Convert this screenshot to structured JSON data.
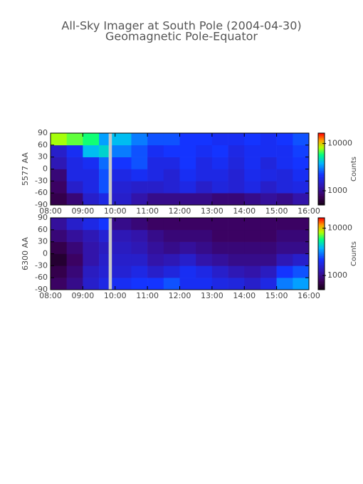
{
  "title": "All-Sky Imager at South Pole (2004-04-30)",
  "subtitle": "Geomagnetic Pole-Equator",
  "chart_data": [
    {
      "type": "heatmap",
      "ylabel": "5577 AA",
      "colormap": "rainbow",
      "x_bins": [
        8,
        8.5,
        9,
        9.5,
        9.8,
        9.9,
        10.5,
        11,
        11.5,
        12,
        12.5,
        13,
        13.5,
        14,
        14.5,
        15,
        15.5,
        16
      ],
      "y_bins": [
        -90,
        -60,
        -30,
        0,
        30,
        60,
        90
      ],
      "values": [
        [
          700,
          900,
          1500,
          1800,
          null,
          1500,
          1200,
          1000,
          1000,
          1000,
          1000,
          900,
          900,
          1000,
          1100,
          1000,
          1200
        ],
        [
          800,
          1500,
          1800,
          2500,
          null,
          1600,
          1500,
          1500,
          1600,
          1800,
          1500,
          1700,
          1600,
          1800,
          1500,
          1700,
          1800
        ],
        [
          900,
          1800,
          1800,
          2500,
          null,
          1800,
          2000,
          1800,
          1600,
          2000,
          1800,
          1800,
          1600,
          1900,
          1800,
          1700,
          2000
        ],
        [
          1300,
          1800,
          2000,
          2800,
          null,
          2200,
          2500,
          1800,
          1800,
          2200,
          1800,
          2000,
          1700,
          2000,
          1700,
          2000,
          2200
        ],
        [
          1500,
          2000,
          4000,
          4500,
          null,
          3000,
          2500,
          2000,
          2200,
          2200,
          2000,
          2200,
          1800,
          2000,
          2000,
          2000,
          2300
        ],
        [
          8000,
          7000,
          6000,
          3500,
          null,
          4000,
          3000,
          2500,
          2500,
          2200,
          2200,
          2000,
          2000,
          2200,
          2000,
          2200,
          2500
        ]
      ],
      "xlim": [
        8,
        16
      ],
      "xticks": [
        {
          "value": 8,
          "label": "08:00"
        },
        {
          "value": 9,
          "label": "09:00"
        },
        {
          "value": 10,
          "label": "10:00"
        },
        {
          "value": 11,
          "label": "11:00"
        },
        {
          "value": 12,
          "label": "12:00"
        },
        {
          "value": 13,
          "label": "13:00"
        },
        {
          "value": 14,
          "label": "14:00"
        },
        {
          "value": 15,
          "label": "15:00"
        },
        {
          "value": 16,
          "label": "16:00"
        }
      ],
      "ylim": [
        -90,
        90
      ],
      "yticks": [
        90,
        60,
        30,
        0,
        -30,
        -60,
        -90
      ],
      "colorbar": {
        "label": "Counts",
        "lim": [
          500,
          16600
        ],
        "ticks": [
          1000,
          10000
        ],
        "log_scale": true
      }
    },
    {
      "type": "heatmap",
      "ylabel": "6300 AA",
      "colormap": "rainbow",
      "x_bins": [
        8,
        8.5,
        9,
        9.5,
        9.8,
        9.9,
        10.5,
        11,
        11.5,
        12,
        12.5,
        13,
        13.5,
        14,
        14.5,
        15,
        15.5,
        16
      ],
      "y_bins": [
        -90,
        -60,
        -30,
        0,
        30,
        60,
        90
      ],
      "values": [
        [
          800,
          1000,
          1500,
          1800,
          null,
          2000,
          2200,
          2200,
          2500,
          2000,
          2000,
          1800,
          1700,
          1500,
          1800,
          3000,
          3500
        ],
        [
          700,
          900,
          1400,
          1600,
          null,
          1600,
          1800,
          1500,
          1700,
          2000,
          1800,
          1500,
          1300,
          1200,
          1400,
          2200,
          2500
        ],
        [
          600,
          800,
          1200,
          1500,
          null,
          1500,
          1500,
          1200,
          1300,
          1500,
          1200,
          1100,
          1000,
          1000,
          1000,
          1300,
          1500
        ],
        [
          700,
          900,
          1200,
          1400,
          null,
          1400,
          1300,
          1100,
          1000,
          1100,
          1000,
          900,
          900,
          900,
          900,
          1000,
          1000
        ],
        [
          900,
          1100,
          1300,
          1600,
          null,
          1300,
          1200,
          1000,
          900,
          900,
          900,
          800,
          800,
          800,
          800,
          900,
          900
        ],
        [
          1100,
          1500,
          1800,
          2200,
          null,
          1000,
          900,
          800,
          800,
          800,
          800,
          800,
          800,
          800,
          800,
          800,
          800
        ]
      ],
      "xlim": [
        8,
        16
      ],
      "xticks": [
        {
          "value": 8,
          "label": "08:00"
        },
        {
          "value": 9,
          "label": "09:00"
        },
        {
          "value": 10,
          "label": "10:00"
        },
        {
          "value": 11,
          "label": "11:00"
        },
        {
          "value": 12,
          "label": "12:00"
        },
        {
          "value": 13,
          "label": "13:00"
        },
        {
          "value": 14,
          "label": "14:00"
        },
        {
          "value": 15,
          "label": "15:00"
        },
        {
          "value": 16,
          "label": "16:00"
        }
      ],
      "ylim": [
        -90,
        90
      ],
      "yticks": [
        90,
        60,
        30,
        0,
        -30,
        -60,
        -90
      ],
      "colorbar": {
        "label": "Counts",
        "lim": [
          500,
          16600
        ],
        "ticks": [
          1000,
          10000
        ],
        "log_scale": true
      }
    }
  ]
}
